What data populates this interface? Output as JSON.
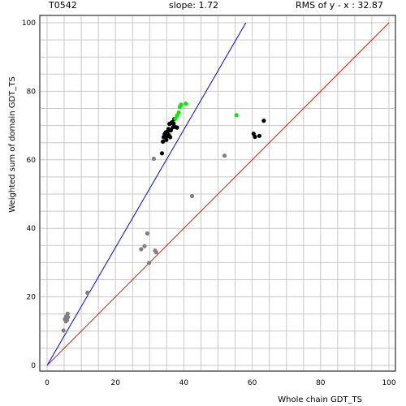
{
  "header": {
    "target": "T0542",
    "slope_text": "slope: 1.72",
    "rms_text": "RMS of  y - x : 32.87"
  },
  "chart_data": {
    "type": "scatter",
    "xlabel": "Whole chain GDT_TS",
    "ylabel": "Weighted sum of domain GDT_TS",
    "xlim": [
      0,
      100
    ],
    "ylim": [
      0,
      100
    ],
    "x_ticks": [
      0,
      20,
      40,
      60,
      80,
      100
    ],
    "y_ticks": [
      0,
      20,
      40,
      60,
      80,
      100
    ],
    "grid": true,
    "lines": [
      {
        "name": "slope",
        "slope": 1.72,
        "color": "#0000ff"
      },
      {
        "name": "diagonal",
        "slope": 1.0,
        "color": "#cc2200"
      }
    ],
    "series": [
      {
        "color": "#808080",
        "points": [
          [
            4.8,
            10.2
          ],
          [
            5.2,
            13.5
          ],
          [
            5.6,
            14.3
          ],
          [
            5.8,
            13.2
          ],
          [
            6.1,
            14.1
          ],
          [
            6.0,
            15.1
          ],
          [
            5.5,
            12.9
          ],
          [
            11.8,
            21.2
          ],
          [
            27.5,
            33.9
          ],
          [
            28.5,
            34.8
          ],
          [
            29.3,
            38.5
          ],
          [
            29.8,
            29.9
          ],
          [
            31.6,
            33.5
          ],
          [
            31.9,
            33.0
          ],
          [
            31.2,
            60.3
          ],
          [
            42.4,
            49.4
          ],
          [
            51.9,
            61.2
          ]
        ]
      },
      {
        "color": "#000000",
        "points": [
          [
            33.6,
            61.9
          ],
          [
            33.9,
            65.3
          ],
          [
            34.1,
            66.6
          ],
          [
            34.4,
            67.5
          ],
          [
            34.7,
            68.0
          ],
          [
            34.9,
            65.8
          ],
          [
            35.1,
            66.9
          ],
          [
            35.3,
            68.3
          ],
          [
            35.5,
            69.0
          ],
          [
            35.6,
            67.2
          ],
          [
            35.8,
            70.5
          ],
          [
            36.0,
            66.6
          ],
          [
            36.2,
            68.6
          ],
          [
            36.4,
            70.8
          ],
          [
            36.6,
            71.0
          ],
          [
            36.8,
            69.5
          ],
          [
            37.0,
            70.6
          ],
          [
            37.2,
            71.9
          ],
          [
            37.4,
            69.6
          ],
          [
            38.0,
            69.4
          ],
          [
            60.4,
            67.6
          ],
          [
            60.8,
            66.7
          ],
          [
            62.1,
            67.0
          ],
          [
            63.4,
            71.4
          ]
        ]
      },
      {
        "color": "#00ee00",
        "points": [
          [
            37.5,
            72.0
          ],
          [
            38.0,
            72.9
          ],
          [
            38.5,
            73.8
          ],
          [
            38.8,
            75.4
          ],
          [
            39.2,
            76.1
          ],
          [
            40.6,
            76.4
          ],
          [
            55.4,
            73.0
          ]
        ]
      }
    ]
  }
}
